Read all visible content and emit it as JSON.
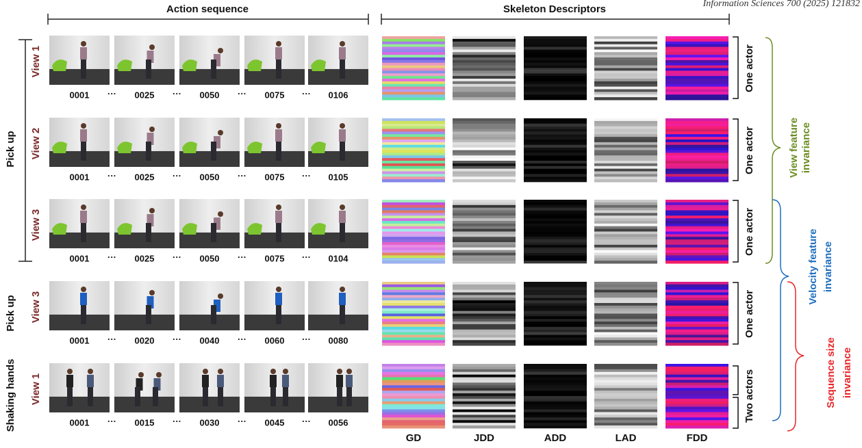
{
  "journal": "Information Sciences 700 (2025) 121832",
  "headers": {
    "action": "Action sequence",
    "descriptors": "Skeleton Descriptors"
  },
  "groups": [
    {
      "label": "Pick up"
    },
    {
      "label": "Pick up"
    },
    {
      "label": "Shaking hands"
    }
  ],
  "ellipsis": "···",
  "rows": [
    {
      "view": "View 1",
      "frames": [
        "0001",
        "0025",
        "0050",
        "0075",
        "0106"
      ],
      "actors": "One actor"
    },
    {
      "view": "View 2",
      "frames": [
        "0001",
        "0025",
        "0050",
        "0075",
        "0105"
      ],
      "actors": "One actor"
    },
    {
      "view": "View 3",
      "frames": [
        "0001",
        "0025",
        "0050",
        "0075",
        "0104"
      ],
      "actors": "One actor"
    },
    {
      "view": "View 3",
      "frames": [
        "0001",
        "0020",
        "0040",
        "0060",
        "0080"
      ],
      "actors": "One actor"
    },
    {
      "view": "View 1",
      "frames": [
        "0001",
        "0015",
        "0030",
        "0045",
        "0056"
      ],
      "actors": "Two actors"
    }
  ],
  "descriptor_labels": [
    "GD",
    "JDD",
    "ADD",
    "LAD",
    "FDD"
  ],
  "invariance": [
    {
      "lines": [
        "View feature",
        "invariance"
      ]
    },
    {
      "lines": [
        "Velocity feature",
        "invariance"
      ]
    },
    {
      "lines": [
        "Sequence size",
        "invariance"
      ]
    }
  ]
}
